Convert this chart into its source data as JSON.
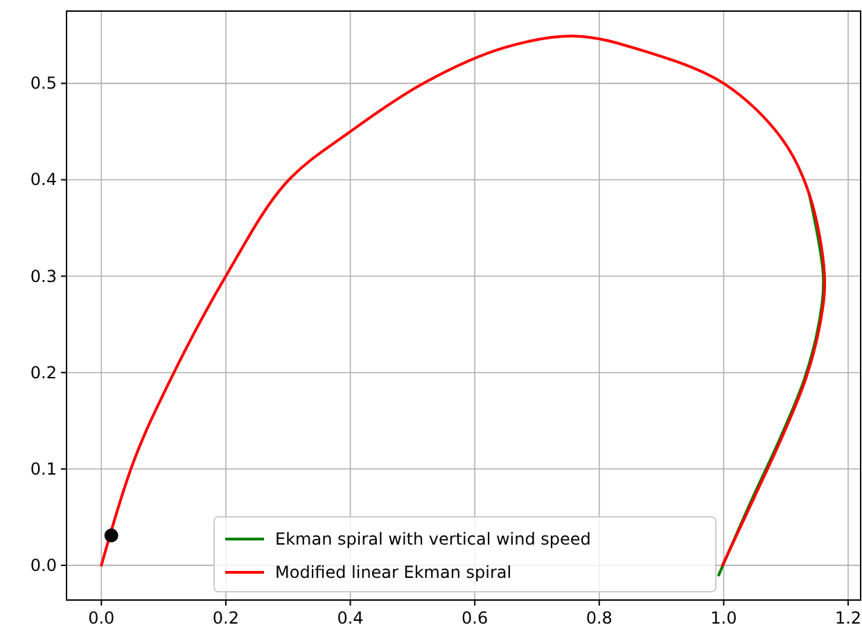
{
  "chart_data": {
    "type": "line",
    "xlim": [
      -0.056,
      1.22
    ],
    "ylim": [
      -0.036,
      0.575
    ],
    "xticks": [
      {
        "value": 0,
        "label": "0.0"
      },
      0.2,
      0.4,
      0.6,
      0.8,
      {
        "value": 1,
        "label": "1.0"
      },
      1.2
    ],
    "yticks": [
      {
        "value": 0,
        "label": "0.0"
      },
      0.1,
      0.2,
      0.3,
      0.4,
      0.5
    ],
    "grid": true,
    "legend": "bottom",
    "marker": "none",
    "line_style": "solid",
    "series": [
      {
        "name": "Ekman spiral with vertical wind speed",
        "color": "#008000",
        "x": [
          1.137,
          1.16,
          1.153,
          1.13,
          1.09,
          1.045,
          0.992
        ],
        "values": [
          0.386,
          0.3,
          0.251,
          0.194,
          0.131,
          0.068,
          -0.01
        ]
      },
      {
        "name": "Modified linear Ekman spiral",
        "color": "#ff0000",
        "x": [
          0,
          0.052,
          0.112,
          0.2,
          0.297,
          0.4,
          0.52,
          0.647,
          0.762,
          0.87,
          1.0,
          1.093,
          1.137,
          1.162,
          1.155,
          1.132,
          1.093,
          1.048,
          0.998
        ],
        "values": [
          0,
          0.108,
          0.194,
          0.3,
          0.397,
          0.45,
          0.501,
          0.537,
          0.549,
          0.534,
          0.5,
          0.443,
          0.386,
          0.3,
          0.251,
          0.194,
          0.132,
          0.069,
          0
        ]
      },
      {
        "type": "scatter",
        "marker": "circle",
        "color": "#000000",
        "x": [
          0.016
        ],
        "values": [
          0.031
        ]
      }
    ]
  }
}
